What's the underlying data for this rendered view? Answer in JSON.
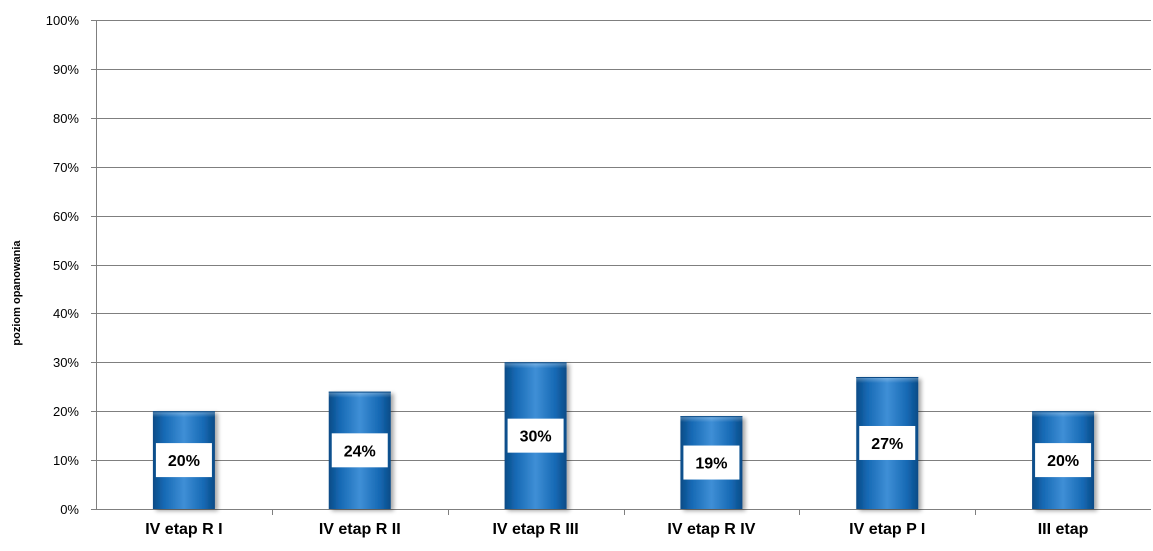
{
  "chart_data": {
    "type": "bar",
    "categories": [
      "IV etap R I",
      "IV etap R II",
      "IV etap R III",
      "IV etap R IV",
      "IV etap P I",
      "III etap"
    ],
    "values": [
      20,
      24,
      30,
      19,
      27,
      20
    ],
    "data_labels": [
      "20%",
      "24%",
      "30%",
      "19%",
      "27%",
      "20%"
    ],
    "title": "",
    "xlabel": "",
    "ylabel": "poziom opanowania",
    "ylim": [
      0,
      100
    ],
    "yticks": [
      0,
      10,
      20,
      30,
      40,
      50,
      60,
      70,
      80,
      90,
      100
    ],
    "ytick_labels": [
      "0%",
      "10%",
      "20%",
      "30%",
      "40%",
      "50%",
      "60%",
      "70%",
      "80%",
      "90%",
      "100%"
    ],
    "grid": true,
    "legend": "none",
    "colors": {
      "bar_top": "#3f8fd6",
      "bar_mid": "#1669b4",
      "bar_dark": "#0a4b86",
      "grid": "#7f7f7f",
      "label_box": "#ffffff"
    }
  }
}
